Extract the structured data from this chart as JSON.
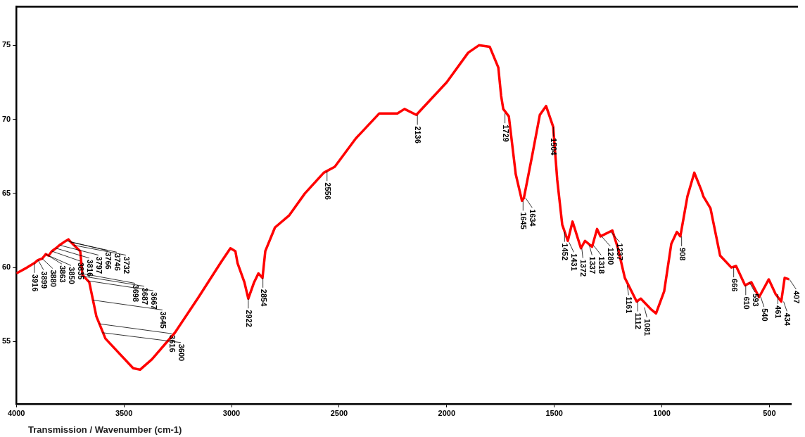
{
  "chart_data": {
    "type": "line",
    "xlabel": "Transmission / Wavenumber (cm-1)",
    "xlim": [
      4000,
      400
    ],
    "xticks": [
      4000,
      3500,
      3000,
      2500,
      2000,
      1500,
      1000,
      500
    ],
    "ylim": [
      50.8,
      77.6
    ],
    "yticks": [
      55,
      60,
      65,
      70,
      75
    ],
    "grid": false,
    "legend": false,
    "marker": "none",
    "line_style": "solid",
    "series": [
      {
        "color": "#ff0000",
        "x": [
          4000,
          3950,
          3916,
          3900,
          3880,
          3863,
          3850,
          3835,
          3816,
          3800,
          3780,
          3758,
          3746,
          3732,
          3703,
          3693,
          3661,
          3628,
          3586,
          3541,
          3457,
          3425,
          3370,
          3263,
          3153,
          3047,
          3005,
          2982,
          2972,
          2940,
          2922,
          2895,
          2875,
          2856,
          2843,
          2798,
          2733,
          2659,
          2571,
          2520,
          2423,
          2313,
          2229,
          2196,
          2141,
          2077,
          2000,
          1900,
          1850,
          1800,
          1760,
          1747,
          1737,
          1711,
          1679,
          1650,
          1641,
          1602,
          1567,
          1538,
          1505,
          1486,
          1463,
          1437,
          1415,
          1376,
          1357,
          1324,
          1301,
          1285,
          1230,
          1204,
          1172,
          1117,
          1098,
          1052,
          1027,
          989,
          956,
          930,
          914,
          881,
          849,
          816,
          807,
          774,
          729,
          677,
          655,
          613,
          584,
          548,
          503,
          471,
          445,
          429,
          409
        ],
        "values": [
          59.6,
          60.0,
          60.3,
          60.5,
          60.6,
          60.9,
          60.8,
          61.1,
          61.3,
          61.5,
          61.7,
          61.9,
          61.7,
          61.5,
          61.1,
          59.5,
          59.0,
          56.7,
          55.2,
          54.5,
          53.2,
          53.1,
          53.8,
          55.6,
          58.0,
          60.4,
          61.3,
          61.1,
          60.3,
          59.0,
          57.9,
          59.0,
          59.6,
          59.3,
          61.1,
          62.7,
          63.5,
          65.0,
          66.4,
          66.8,
          68.7,
          70.4,
          70.4,
          70.7,
          70.3,
          71.3,
          72.5,
          74.5,
          75.0,
          74.9,
          73.5,
          71.6,
          70.7,
          70.2,
          66.3,
          64.5,
          64.7,
          67.6,
          70.3,
          70.9,
          69.5,
          65.9,
          62.9,
          61.8,
          63.1,
          61.3,
          61.8,
          61.4,
          62.6,
          62.1,
          62.5,
          61.3,
          59.3,
          57.7,
          57.9,
          57.2,
          56.9,
          58.4,
          61.6,
          62.4,
          62.1,
          64.8,
          66.4,
          65.2,
          64.8,
          64.0,
          60.8,
          60.0,
          60.1,
          58.8,
          59.0,
          58.0,
          59.2,
          58.2,
          57.7,
          59.3,
          59.2
        ]
      }
    ],
    "annotations": [
      {
        "text": "3916",
        "x": 3916,
        "y": 60.3
      },
      {
        "text": "3899",
        "x": 3899,
        "y": 60.5
      },
      {
        "text": "3880",
        "x": 3880,
        "y": 60.6
      },
      {
        "text": "3863",
        "x": 3863,
        "y": 60.9
      },
      {
        "text": "3850",
        "x": 3850,
        "y": 60.8
      },
      {
        "text": "3835",
        "x": 3835,
        "y": 61.1
      },
      {
        "text": "3816",
        "x": 3816,
        "y": 61.3
      },
      {
        "text": "3797",
        "x": 3797,
        "y": 61.5
      },
      {
        "text": "3766",
        "x": 3766,
        "y": 61.8
      },
      {
        "text": "3746",
        "x": 3746,
        "y": 61.7
      },
      {
        "text": "3732",
        "x": 3732,
        "y": 61.5
      },
      {
        "text": "3698",
        "x": 3698,
        "y": 59.6
      },
      {
        "text": "3687",
        "x": 3687,
        "y": 59.4
      },
      {
        "text": "3667",
        "x": 3667,
        "y": 59.1
      },
      {
        "text": "3645",
        "x": 3645,
        "y": 57.8
      },
      {
        "text": "3616",
        "x": 3616,
        "y": 56.2
      },
      {
        "text": "3600",
        "x": 3600,
        "y": 55.6
      },
      {
        "text": "2922",
        "x": 2922,
        "y": 57.9
      },
      {
        "text": "2854",
        "x": 2854,
        "y": 59.3
      },
      {
        "text": "2556",
        "x": 2556,
        "y": 66.5
      },
      {
        "text": "2136",
        "x": 2136,
        "y": 70.3
      },
      {
        "text": "1729",
        "x": 1729,
        "y": 70.4
      },
      {
        "text": "1645",
        "x": 1645,
        "y": 64.5
      },
      {
        "text": "1634",
        "x": 1634,
        "y": 64.7
      },
      {
        "text": "1504",
        "x": 1504,
        "y": 69.5
      },
      {
        "text": "1452",
        "x": 1452,
        "y": 62.4
      },
      {
        "text": "1431",
        "x": 1431,
        "y": 61.7
      },
      {
        "text": "1372",
        "x": 1372,
        "y": 61.3
      },
      {
        "text": "1337",
        "x": 1337,
        "y": 61.5
      },
      {
        "text": "1318",
        "x": 1318,
        "y": 61.5
      },
      {
        "text": "1280",
        "x": 1280,
        "y": 62.1
      },
      {
        "text": "1237",
        "x": 1237,
        "y": 62.4
      },
      {
        "text": "1161",
        "x": 1161,
        "y": 58.8
      },
      {
        "text": "1112",
        "x": 1112,
        "y": 57.7
      },
      {
        "text": "1081",
        "x": 1081,
        "y": 57.3
      },
      {
        "text": "908",
        "x": 908,
        "y": 62.1
      },
      {
        "text": "666",
        "x": 666,
        "y": 60.0
      },
      {
        "text": "610",
        "x": 610,
        "y": 58.8
      },
      {
        "text": "593",
        "x": 593,
        "y": 59.0
      },
      {
        "text": "540",
        "x": 540,
        "y": 58.0
      },
      {
        "text": "461",
        "x": 461,
        "y": 58.2
      },
      {
        "text": "434",
        "x": 434,
        "y": 57.7
      },
      {
        "text": "407",
        "x": 407,
        "y": 59.2
      }
    ]
  }
}
